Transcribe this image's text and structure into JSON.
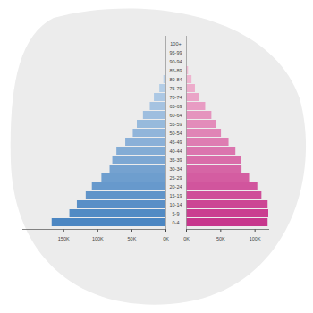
{
  "chart_data": [
    {
      "type": "bar",
      "orientation": "horizontal",
      "categories": [
        "0-4",
        "5-9",
        "10-14",
        "15-19",
        "20-24",
        "25-29",
        "30-34",
        "35-39",
        "40-44",
        "45-49",
        "50-54",
        "55-59",
        "60-64",
        "65-69",
        "70-74",
        "75-79",
        "80-84",
        "85-89",
        "90-94",
        "95-99",
        "100+"
      ],
      "values": [
        167000,
        141000,
        130000,
        117000,
        108000,
        94000,
        82000,
        78000,
        72000,
        59000,
        48000,
        42000,
        33000,
        23000,
        17000,
        9000,
        3000,
        0,
        0,
        0,
        0
      ],
      "colors": [
        "#4b86c2",
        "#528bc4",
        "#598fc7",
        "#6094c9",
        "#6799cc",
        "#6e9ece",
        "#75a2d0",
        "#7ca7d3",
        "#83acd5",
        "#8ab0d8",
        "#91b5da",
        "#97badc",
        "#9ebedf",
        "#a5c3e1",
        "#acc8e4",
        "#b3cde6",
        "#bad1e8",
        "#c1d6eb",
        "#c8dbed",
        "#cfdff0",
        "#d6e4f2"
      ],
      "xlim": [
        210000,
        0
      ],
      "xticks": [
        {
          "value": 150000,
          "label": "150K"
        },
        {
          "value": 100000,
          "label": "100K"
        },
        {
          "value": 50000,
          "label": "50K"
        },
        {
          "value": 0,
          "label": "0K"
        }
      ],
      "tick_labels": true
    },
    {
      "type": "bar",
      "orientation": "horizontal",
      "categories": [
        "0-4",
        "5-9",
        "10-14",
        "15-19",
        "20-24",
        "25-29",
        "30-34",
        "35-39",
        "40-44",
        "45-49",
        "50-54",
        "55-59",
        "60-64",
        "65-69",
        "70-74",
        "75-79",
        "80-84",
        "85-89",
        "90-94",
        "95-99",
        "100+"
      ],
      "values": [
        119000,
        120000,
        119000,
        110000,
        104000,
        92000,
        81000,
        80000,
        72000,
        62000,
        51000,
        44000,
        37000,
        28000,
        19000,
        13000,
        8000,
        3000,
        0,
        0,
        0
      ],
      "colors": [
        "#c7368c",
        "#ca3e90",
        "#cc4694",
        "#cf4e99",
        "#d1559d",
        "#d45da1",
        "#d665a5",
        "#d96da9",
        "#db75ae",
        "#de7db2",
        "#e085b6",
        "#e38cba",
        "#e594be",
        "#e89cc3",
        "#eaa4c7",
        "#edaccb",
        "#efb4cf",
        "#f2bbd3",
        "#f4c3d8",
        "#f7cbdc",
        "#f9d3e0"
      ],
      "xlim": [
        0,
        120000
      ],
      "xticks": [
        {
          "value": 0,
          "label": "0K"
        },
        {
          "value": 50000,
          "label": "50K"
        },
        {
          "value": 100000,
          "label": "100K"
        }
      ],
      "tick_labels": "x"
    }
  ]
}
